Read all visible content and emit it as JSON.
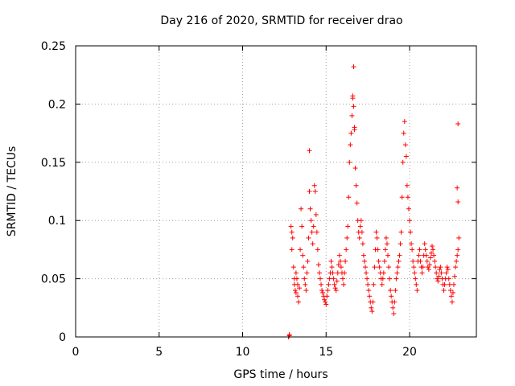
{
  "chart_data": {
    "type": "scatter",
    "title": "Day 216 of 2020, SRMTID for receiver drao",
    "xlabel": "GPS time / hours",
    "ylabel": "SRMTID / TECUs",
    "xlim": [
      0,
      24
    ],
    "ylim": [
      0,
      0.25
    ],
    "xticks": [
      0,
      5,
      10,
      15,
      20
    ],
    "xtick_labels": [
      "0",
      "5",
      "10",
      "15",
      "20"
    ],
    "yticks": [
      0,
      0.05,
      0.1,
      0.15,
      0.2,
      0.25
    ],
    "ytick_labels": [
      "0",
      "0.05",
      "0.1",
      "0.15",
      "0.2",
      "0.25"
    ],
    "grid": true,
    "marker": "plus",
    "color": "#ff0000",
    "series": [
      {
        "name": "SRMTID",
        "points": [
          [
            12.75,
            0.0
          ],
          [
            12.8,
            0.001
          ],
          [
            12.8,
            0.002
          ],
          [
            12.9,
            0.095
          ],
          [
            12.95,
            0.09
          ],
          [
            13.0,
            0.085
          ],
          [
            12.95,
            0.075
          ],
          [
            13.05,
            0.06
          ],
          [
            13.1,
            0.05
          ],
          [
            13.1,
            0.045
          ],
          [
            13.15,
            0.04
          ],
          [
            13.2,
            0.038
          ],
          [
            13.2,
            0.055
          ],
          [
            13.25,
            0.05
          ],
          [
            13.3,
            0.045
          ],
          [
            13.3,
            0.035
          ],
          [
            13.35,
            0.03
          ],
          [
            13.4,
            0.042
          ],
          [
            13.45,
            0.075
          ],
          [
            13.5,
            0.11
          ],
          [
            13.55,
            0.095
          ],
          [
            13.6,
            0.07
          ],
          [
            13.65,
            0.06
          ],
          [
            13.7,
            0.05
          ],
          [
            13.75,
            0.045
          ],
          [
            13.8,
            0.04
          ],
          [
            13.85,
            0.055
          ],
          [
            13.9,
            0.065
          ],
          [
            13.95,
            0.085
          ],
          [
            14.0,
            0.16
          ],
          [
            14.0,
            0.125
          ],
          [
            14.05,
            0.11
          ],
          [
            14.1,
            0.1
          ],
          [
            14.15,
            0.09
          ],
          [
            14.2,
            0.08
          ],
          [
            14.25,
            0.095
          ],
          [
            14.3,
            0.13
          ],
          [
            14.35,
            0.125
          ],
          [
            14.4,
            0.105
          ],
          [
            14.45,
            0.09
          ],
          [
            14.5,
            0.075
          ],
          [
            14.55,
            0.062
          ],
          [
            14.6,
            0.055
          ],
          [
            14.65,
            0.05
          ],
          [
            14.7,
            0.045
          ],
          [
            14.75,
            0.04
          ],
          [
            14.8,
            0.038
          ],
          [
            14.85,
            0.035
          ],
          [
            14.9,
            0.032
          ],
          [
            14.95,
            0.03
          ],
          [
            15.0,
            0.028
          ],
          [
            15.05,
            0.035
          ],
          [
            15.1,
            0.04
          ],
          [
            15.15,
            0.045
          ],
          [
            15.2,
            0.05
          ],
          [
            15.25,
            0.055
          ],
          [
            15.3,
            0.065
          ],
          [
            15.35,
            0.06
          ],
          [
            15.4,
            0.055
          ],
          [
            15.45,
            0.05
          ],
          [
            15.5,
            0.045
          ],
          [
            15.55,
            0.042
          ],
          [
            15.6,
            0.04
          ],
          [
            15.65,
            0.048
          ],
          [
            15.7,
            0.055
          ],
          [
            15.75,
            0.062
          ],
          [
            15.8,
            0.07
          ],
          [
            15.85,
            0.065
          ],
          [
            15.9,
            0.06
          ],
          [
            15.95,
            0.055
          ],
          [
            16.0,
            0.05
          ],
          [
            16.05,
            0.045
          ],
          [
            16.1,
            0.055
          ],
          [
            16.15,
            0.065
          ],
          [
            16.2,
            0.075
          ],
          [
            16.25,
            0.085
          ],
          [
            16.3,
            0.095
          ],
          [
            16.35,
            0.12
          ],
          [
            16.4,
            0.15
          ],
          [
            16.45,
            0.165
          ],
          [
            16.5,
            0.175
          ],
          [
            16.55,
            0.19
          ],
          [
            16.6,
            0.205
          ],
          [
            16.6,
            0.207
          ],
          [
            16.65,
            0.232
          ],
          [
            16.65,
            0.198
          ],
          [
            16.7,
            0.18
          ],
          [
            16.7,
            0.178
          ],
          [
            16.75,
            0.145
          ],
          [
            16.8,
            0.13
          ],
          [
            16.85,
            0.115
          ],
          [
            16.9,
            0.1
          ],
          [
            16.95,
            0.09
          ],
          [
            17.0,
            0.085
          ],
          [
            17.05,
            0.095
          ],
          [
            17.1,
            0.1
          ],
          [
            17.15,
            0.09
          ],
          [
            17.2,
            0.08
          ],
          [
            17.25,
            0.07
          ],
          [
            17.3,
            0.065
          ],
          [
            17.35,
            0.06
          ],
          [
            17.4,
            0.055
          ],
          [
            17.45,
            0.05
          ],
          [
            17.5,
            0.045
          ],
          [
            17.55,
            0.04
          ],
          [
            17.6,
            0.035
          ],
          [
            17.65,
            0.03
          ],
          [
            17.7,
            0.025
          ],
          [
            17.75,
            0.022
          ],
          [
            17.8,
            0.03
          ],
          [
            17.85,
            0.045
          ],
          [
            17.9,
            0.06
          ],
          [
            17.95,
            0.075
          ],
          [
            18.0,
            0.09
          ],
          [
            18.05,
            0.085
          ],
          [
            18.1,
            0.075
          ],
          [
            18.15,
            0.065
          ],
          [
            18.2,
            0.06
          ],
          [
            18.25,
            0.055
          ],
          [
            18.3,
            0.05
          ],
          [
            18.35,
            0.045
          ],
          [
            18.4,
            0.05
          ],
          [
            18.45,
            0.055
          ],
          [
            18.5,
            0.065
          ],
          [
            18.55,
            0.075
          ],
          [
            18.6,
            0.085
          ],
          [
            18.65,
            0.08
          ],
          [
            18.7,
            0.07
          ],
          [
            18.75,
            0.06
          ],
          [
            18.8,
            0.05
          ],
          [
            18.85,
            0.04
          ],
          [
            18.9,
            0.035
          ],
          [
            18.95,
            0.03
          ],
          [
            19.0,
            0.025
          ],
          [
            19.05,
            0.02
          ],
          [
            19.1,
            0.03
          ],
          [
            19.15,
            0.04
          ],
          [
            19.2,
            0.05
          ],
          [
            19.25,
            0.055
          ],
          [
            19.3,
            0.06
          ],
          [
            19.35,
            0.065
          ],
          [
            19.4,
            0.07
          ],
          [
            19.45,
            0.08
          ],
          [
            19.5,
            0.09
          ],
          [
            19.55,
            0.12
          ],
          [
            19.6,
            0.15
          ],
          [
            19.65,
            0.175
          ],
          [
            19.7,
            0.185
          ],
          [
            19.75,
            0.165
          ],
          [
            19.8,
            0.155
          ],
          [
            19.85,
            0.13
          ],
          [
            19.9,
            0.12
          ],
          [
            19.95,
            0.11
          ],
          [
            20.0,
            0.1
          ],
          [
            20.05,
            0.09
          ],
          [
            20.1,
            0.08
          ],
          [
            20.15,
            0.075
          ],
          [
            20.2,
            0.065
          ],
          [
            20.25,
            0.06
          ],
          [
            20.3,
            0.055
          ],
          [
            20.35,
            0.05
          ],
          [
            20.4,
            0.045
          ],
          [
            20.45,
            0.04
          ],
          [
            20.5,
            0.065
          ],
          [
            20.55,
            0.07
          ],
          [
            20.6,
            0.075
          ],
          [
            20.65,
            0.065
          ],
          [
            20.7,
            0.06
          ],
          [
            20.75,
            0.055
          ],
          [
            20.8,
            0.06
          ],
          [
            20.85,
            0.07
          ],
          [
            20.9,
            0.08
          ],
          [
            20.95,
            0.075
          ],
          [
            21.0,
            0.07
          ],
          [
            21.05,
            0.065
          ],
          [
            21.1,
            0.06
          ],
          [
            21.15,
            0.058
          ],
          [
            21.2,
            0.062
          ],
          [
            21.25,
            0.068
          ],
          [
            21.3,
            0.072
          ],
          [
            21.35,
            0.078
          ],
          [
            21.4,
            0.075
          ],
          [
            21.45,
            0.07
          ],
          [
            21.5,
            0.065
          ],
          [
            21.55,
            0.06
          ],
          [
            21.6,
            0.055
          ],
          [
            21.65,
            0.05
          ],
          [
            21.7,
            0.048
          ],
          [
            21.75,
            0.052
          ],
          [
            21.8,
            0.058
          ],
          [
            21.85,
            0.06
          ],
          [
            21.9,
            0.055
          ],
          [
            21.95,
            0.05
          ],
          [
            22.0,
            0.045
          ],
          [
            22.05,
            0.04
          ],
          [
            22.1,
            0.045
          ],
          [
            22.15,
            0.05
          ],
          [
            22.2,
            0.055
          ],
          [
            22.25,
            0.06
          ],
          [
            22.3,
            0.058
          ],
          [
            22.35,
            0.05
          ],
          [
            22.4,
            0.045
          ],
          [
            22.45,
            0.04
          ],
          [
            22.5,
            0.035
          ],
          [
            22.55,
            0.03
          ],
          [
            22.6,
            0.038
          ],
          [
            22.65,
            0.045
          ],
          [
            22.7,
            0.052
          ],
          [
            22.75,
            0.06
          ],
          [
            22.8,
            0.065
          ],
          [
            22.85,
            0.07
          ],
          [
            22.9,
            0.075
          ],
          [
            22.95,
            0.085
          ],
          [
            22.9,
            0.183
          ],
          [
            22.85,
            0.128
          ],
          [
            22.9,
            0.116
          ]
        ]
      }
    ]
  }
}
